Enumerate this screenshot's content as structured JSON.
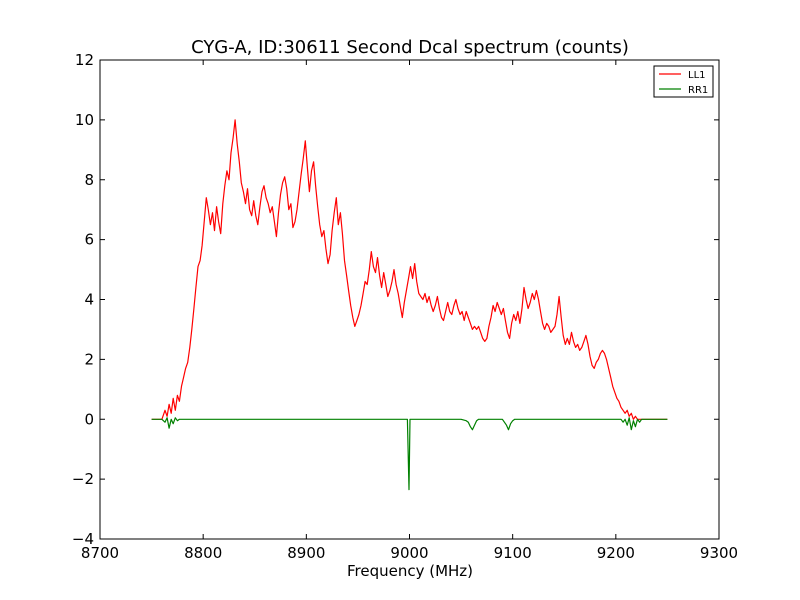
{
  "chart_data": {
    "type": "line",
    "title": "CYG-A, ID:30611 Second Dcal spectrum (counts)",
    "xlabel": "Frequency (MHz)",
    "ylabel": "",
    "xlim": [
      8700,
      9300
    ],
    "ylim": [
      -4,
      12
    ],
    "x_ticks": [
      8700,
      8800,
      8900,
      9000,
      9100,
      9200,
      9300
    ],
    "y_ticks": [
      -4,
      -2,
      0,
      2,
      4,
      6,
      8,
      10,
      12
    ],
    "x_tick_labels": [
      "8700",
      "8800",
      "8900",
      "9000",
      "9100",
      "9200",
      "9300"
    ],
    "y_tick_labels": [
      "−4",
      "−2",
      "0",
      "2",
      "4",
      "6",
      "8",
      "10",
      "12"
    ],
    "grid": false,
    "legend_position": "top-right",
    "series": [
      {
        "name": "LL1",
        "color": "#ff0000",
        "points": [
          [
            8750,
            0.0
          ],
          [
            8755,
            0.0
          ],
          [
            8760,
            0.0
          ],
          [
            8763,
            0.3
          ],
          [
            8765,
            0.1
          ],
          [
            8767,
            0.5
          ],
          [
            8769,
            0.2
          ],
          [
            8771,
            0.7
          ],
          [
            8773,
            0.3
          ],
          [
            8775,
            0.8
          ],
          [
            8777,
            0.6
          ],
          [
            8779,
            1.1
          ],
          [
            8781,
            1.4
          ],
          [
            8783,
            1.7
          ],
          [
            8785,
            1.9
          ],
          [
            8787,
            2.4
          ],
          [
            8789,
            3.0
          ],
          [
            8791,
            3.7
          ],
          [
            8793,
            4.4
          ],
          [
            8795,
            5.1
          ],
          [
            8797,
            5.3
          ],
          [
            8799,
            5.8
          ],
          [
            8801,
            6.6
          ],
          [
            8803,
            7.4
          ],
          [
            8805,
            7.0
          ],
          [
            8807,
            6.5
          ],
          [
            8809,
            6.9
          ],
          [
            8811,
            6.3
          ],
          [
            8813,
            7.1
          ],
          [
            8815,
            6.6
          ],
          [
            8817,
            6.2
          ],
          [
            8819,
            7.2
          ],
          [
            8821,
            7.8
          ],
          [
            8823,
            8.3
          ],
          [
            8825,
            8.0
          ],
          [
            8827,
            8.9
          ],
          [
            8829,
            9.4
          ],
          [
            8831,
            10.0
          ],
          [
            8833,
            9.2
          ],
          [
            8835,
            8.6
          ],
          [
            8837,
            7.9
          ],
          [
            8839,
            7.6
          ],
          [
            8841,
            7.2
          ],
          [
            8843,
            7.7
          ],
          [
            8845,
            7.0
          ],
          [
            8847,
            6.8
          ],
          [
            8849,
            7.3
          ],
          [
            8851,
            6.8
          ],
          [
            8853,
            6.5
          ],
          [
            8855,
            7.1
          ],
          [
            8857,
            7.6
          ],
          [
            8859,
            7.8
          ],
          [
            8861,
            7.4
          ],
          [
            8863,
            7.2
          ],
          [
            8865,
            6.9
          ],
          [
            8867,
            7.1
          ],
          [
            8869,
            6.6
          ],
          [
            8871,
            6.1
          ],
          [
            8873,
            6.9
          ],
          [
            8875,
            7.5
          ],
          [
            8877,
            7.9
          ],
          [
            8879,
            8.1
          ],
          [
            8881,
            7.7
          ],
          [
            8883,
            7.0
          ],
          [
            8885,
            7.2
          ],
          [
            8887,
            6.4
          ],
          [
            8889,
            6.6
          ],
          [
            8891,
            7.0
          ],
          [
            8893,
            7.6
          ],
          [
            8895,
            8.2
          ],
          [
            8897,
            8.7
          ],
          [
            8899,
            9.3
          ],
          [
            8901,
            8.4
          ],
          [
            8903,
            7.6
          ],
          [
            8905,
            8.3
          ],
          [
            8907,
            8.6
          ],
          [
            8909,
            7.8
          ],
          [
            8911,
            7.1
          ],
          [
            8913,
            6.5
          ],
          [
            8915,
            6.1
          ],
          [
            8917,
            6.3
          ],
          [
            8919,
            5.7
          ],
          [
            8921,
            5.2
          ],
          [
            8923,
            5.5
          ],
          [
            8925,
            6.3
          ],
          [
            8927,
            6.9
          ],
          [
            8929,
            7.4
          ],
          [
            8931,
            6.5
          ],
          [
            8933,
            6.9
          ],
          [
            8935,
            6.2
          ],
          [
            8937,
            5.3
          ],
          [
            8939,
            4.8
          ],
          [
            8941,
            4.3
          ],
          [
            8943,
            3.8
          ],
          [
            8945,
            3.4
          ],
          [
            8947,
            3.1
          ],
          [
            8949,
            3.3
          ],
          [
            8951,
            3.5
          ],
          [
            8953,
            3.8
          ],
          [
            8955,
            4.2
          ],
          [
            8957,
            4.6
          ],
          [
            8959,
            4.5
          ],
          [
            8961,
            5.0
          ],
          [
            8963,
            5.6
          ],
          [
            8965,
            5.1
          ],
          [
            8967,
            4.9
          ],
          [
            8969,
            5.4
          ],
          [
            8971,
            4.8
          ],
          [
            8973,
            4.4
          ],
          [
            8975,
            4.9
          ],
          [
            8977,
            4.5
          ],
          [
            8979,
            4.1
          ],
          [
            8981,
            4.3
          ],
          [
            8983,
            4.6
          ],
          [
            8985,
            5.0
          ],
          [
            8987,
            4.5
          ],
          [
            8989,
            4.2
          ],
          [
            8991,
            3.8
          ],
          [
            8993,
            3.4
          ],
          [
            8995,
            3.9
          ],
          [
            8997,
            4.3
          ],
          [
            8999,
            4.7
          ],
          [
            9001,
            5.1
          ],
          [
            9003,
            4.7
          ],
          [
            9005,
            5.2
          ],
          [
            9007,
            4.6
          ],
          [
            9009,
            4.2
          ],
          [
            9011,
            4.1
          ],
          [
            9013,
            4.0
          ],
          [
            9015,
            4.2
          ],
          [
            9017,
            3.9
          ],
          [
            9019,
            4.1
          ],
          [
            9021,
            3.8
          ],
          [
            9023,
            3.6
          ],
          [
            9025,
            3.8
          ],
          [
            9027,
            4.1
          ],
          [
            9029,
            3.7
          ],
          [
            9031,
            3.4
          ],
          [
            9033,
            3.3
          ],
          [
            9035,
            3.6
          ],
          [
            9037,
            3.9
          ],
          [
            9039,
            3.6
          ],
          [
            9041,
            3.5
          ],
          [
            9043,
            3.8
          ],
          [
            9045,
            4.0
          ],
          [
            9047,
            3.7
          ],
          [
            9049,
            3.5
          ],
          [
            9051,
            3.6
          ],
          [
            9053,
            3.3
          ],
          [
            9055,
            3.6
          ],
          [
            9057,
            3.4
          ],
          [
            9059,
            3.2
          ],
          [
            9061,
            3.0
          ],
          [
            9063,
            3.1
          ],
          [
            9065,
            3.0
          ],
          [
            9067,
            3.1
          ],
          [
            9069,
            2.9
          ],
          [
            9071,
            2.7
          ],
          [
            9073,
            2.6
          ],
          [
            9075,
            2.7
          ],
          [
            9077,
            3.1
          ],
          [
            9079,
            3.4
          ],
          [
            9081,
            3.8
          ],
          [
            9083,
            3.6
          ],
          [
            9085,
            3.9
          ],
          [
            9087,
            3.7
          ],
          [
            9089,
            3.5
          ],
          [
            9091,
            3.7
          ],
          [
            9093,
            3.3
          ],
          [
            9095,
            2.9
          ],
          [
            9097,
            2.7
          ],
          [
            9099,
            3.2
          ],
          [
            9101,
            3.5
          ],
          [
            9103,
            3.3
          ],
          [
            9105,
            3.6
          ],
          [
            9107,
            3.2
          ],
          [
            9109,
            3.7
          ],
          [
            9111,
            4.4
          ],
          [
            9113,
            4.0
          ],
          [
            9115,
            3.7
          ],
          [
            9117,
            3.9
          ],
          [
            9119,
            4.2
          ],
          [
            9121,
            4.0
          ],
          [
            9123,
            4.3
          ],
          [
            9125,
            4.0
          ],
          [
            9127,
            3.6
          ],
          [
            9129,
            3.2
          ],
          [
            9131,
            3.0
          ],
          [
            9133,
            3.2
          ],
          [
            9135,
            3.1
          ],
          [
            9137,
            2.9
          ],
          [
            9139,
            3.0
          ],
          [
            9141,
            3.1
          ],
          [
            9143,
            3.5
          ],
          [
            9145,
            4.1
          ],
          [
            9147,
            3.4
          ],
          [
            9149,
            2.8
          ],
          [
            9151,
            2.5
          ],
          [
            9153,
            2.7
          ],
          [
            9155,
            2.5
          ],
          [
            9157,
            2.9
          ],
          [
            9159,
            2.6
          ],
          [
            9161,
            2.4
          ],
          [
            9163,
            2.5
          ],
          [
            9165,
            2.3
          ],
          [
            9167,
            2.4
          ],
          [
            9169,
            2.6
          ],
          [
            9171,
            2.8
          ],
          [
            9173,
            2.5
          ],
          [
            9175,
            2.1
          ],
          [
            9177,
            1.8
          ],
          [
            9179,
            1.7
          ],
          [
            9181,
            1.9
          ],
          [
            9183,
            2.0
          ],
          [
            9185,
            2.2
          ],
          [
            9187,
            2.3
          ],
          [
            9189,
            2.2
          ],
          [
            9191,
            2.0
          ],
          [
            9193,
            1.7
          ],
          [
            9195,
            1.4
          ],
          [
            9197,
            1.1
          ],
          [
            9199,
            0.9
          ],
          [
            9201,
            0.7
          ],
          [
            9203,
            0.6
          ],
          [
            9205,
            0.4
          ],
          [
            9207,
            0.3
          ],
          [
            9209,
            0.2
          ],
          [
            9211,
            0.3
          ],
          [
            9213,
            0.1
          ],
          [
            9215,
            0.2
          ],
          [
            9217,
            0.0
          ],
          [
            9219,
            0.1
          ],
          [
            9221,
            0.0
          ],
          [
            9225,
            0.0
          ],
          [
            9235,
            0.0
          ],
          [
            9250,
            0.0
          ]
        ]
      },
      {
        "name": "RR1",
        "color": "#008000",
        "points": [
          [
            8750,
            0.0
          ],
          [
            8760,
            0.0
          ],
          [
            8763,
            -0.1
          ],
          [
            8765,
            0.05
          ],
          [
            8767,
            -0.3
          ],
          [
            8769,
            0.0
          ],
          [
            8771,
            -0.15
          ],
          [
            8773,
            0.05
          ],
          [
            8775,
            -0.05
          ],
          [
            8777,
            0.0
          ],
          [
            8790,
            0.0
          ],
          [
            8830,
            0.0
          ],
          [
            8870,
            0.0
          ],
          [
            8900,
            0.0
          ],
          [
            8940,
            0.0
          ],
          [
            8980,
            0.0
          ],
          [
            8998,
            0.0
          ],
          [
            8999.5,
            -2.35
          ],
          [
            9000.5,
            0.0
          ],
          [
            9020,
            0.0
          ],
          [
            9050,
            0.0
          ],
          [
            9055,
            -0.05
          ],
          [
            9057,
            -0.1
          ],
          [
            9059,
            -0.25
          ],
          [
            9061,
            -0.35
          ],
          [
            9063,
            -0.2
          ],
          [
            9065,
            -0.05
          ],
          [
            9067,
            0.0
          ],
          [
            9090,
            0.0
          ],
          [
            9092,
            -0.1
          ],
          [
            9094,
            -0.2
          ],
          [
            9096,
            -0.35
          ],
          [
            9098,
            -0.15
          ],
          [
            9100,
            -0.05
          ],
          [
            9102,
            0.0
          ],
          [
            9150,
            0.0
          ],
          [
            9205,
            0.0
          ],
          [
            9207,
            -0.1
          ],
          [
            9209,
            0.0
          ],
          [
            9211,
            -0.2
          ],
          [
            9213,
            0.05
          ],
          [
            9215,
            -0.35
          ],
          [
            9217,
            -0.05
          ],
          [
            9219,
            -0.25
          ],
          [
            9221,
            0.0
          ],
          [
            9223,
            -0.1
          ],
          [
            9225,
            0.0
          ],
          [
            9250,
            0.0
          ]
        ]
      }
    ]
  }
}
